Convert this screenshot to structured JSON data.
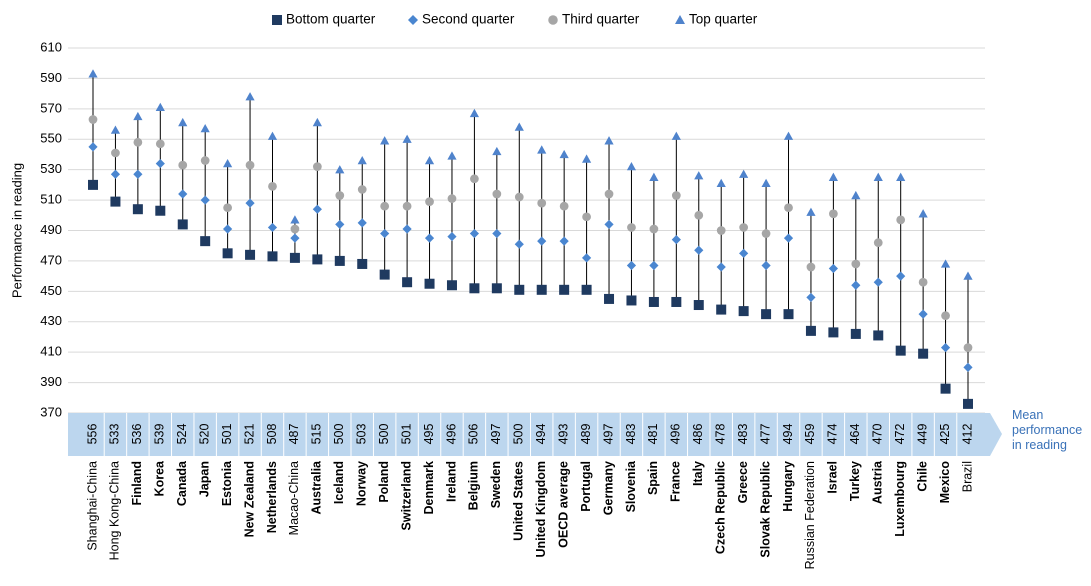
{
  "chart_data": {
    "type": "range-dot",
    "y_label": "Performance in reading",
    "mean_label": "Mean performance in reading",
    "categories": [
      "Shanghai-China",
      "Hong Kong-China",
      "Finland",
      "Korea",
      "Canada",
      "Japan",
      "Estonia",
      "New Zealand",
      "Netherlands",
      "Macao-China",
      "Australia",
      "Iceland",
      "Norway",
      "Poland",
      "Switzerland",
      "Denmark",
      "Ireland",
      "Belgium",
      "Sweden",
      "United States",
      "United Kingdom",
      "OECD average",
      "Portugal",
      "Germany",
      "Slovenia",
      "Spain",
      "France",
      "Italy",
      "Czech Republic",
      "Greece",
      "Slovak Republic",
      "Hungary",
      "Russian Federation",
      "Israel",
      "Turkey",
      "Austria",
      "Luxembourg",
      "Chile",
      "Mexico",
      "Brazil"
    ],
    "mean_values": [
      556,
      533,
      536,
      539,
      524,
      520,
      501,
      521,
      508,
      487,
      515,
      500,
      503,
      500,
      501,
      495,
      496,
      506,
      497,
      500,
      494,
      493,
      489,
      497,
      483,
      481,
      496,
      486,
      478,
      483,
      477,
      494,
      459,
      474,
      464,
      470,
      472,
      449,
      425,
      412
    ],
    "gray_categories": [
      0,
      1,
      9,
      32,
      39
    ],
    "gray_color": "#8c8c8c",
    "series": [
      {
        "name": "Bottom quarter",
        "color": "#1f3a60",
        "marker": "square",
        "values": [
          520,
          509,
          504,
          503,
          494,
          483,
          475,
          474,
          473,
          472,
          471,
          470,
          468,
          461,
          456,
          455,
          454,
          452,
          452,
          451,
          451,
          451,
          451,
          445,
          444,
          443,
          443,
          441,
          438,
          437,
          435,
          435,
          424,
          423,
          422,
          421,
          411,
          409,
          386,
          376
        ]
      },
      {
        "name": "Second quarter",
        "color": "#4a86d0",
        "marker": "diamond",
        "values": [
          545,
          527,
          527,
          534,
          514,
          510,
          491,
          508,
          492,
          485,
          504,
          494,
          495,
          488,
          491,
          485,
          486,
          488,
          488,
          481,
          483,
          483,
          472,
          494,
          467,
          467,
          484,
          477,
          466,
          475,
          467,
          485,
          446,
          465,
          454,
          456,
          460,
          435,
          413,
          400
        ]
      },
      {
        "name": "Third quarter",
        "color": "#a6a6a6",
        "marker": "circle",
        "values": [
          563,
          541,
          548,
          547,
          533,
          536,
          505,
          533,
          519,
          491,
          532,
          513,
          517,
          506,
          506,
          509,
          511,
          524,
          514,
          512,
          508,
          506,
          499,
          514,
          492,
          491,
          513,
          500,
          490,
          492,
          488,
          505,
          466,
          501,
          468,
          482,
          497,
          456,
          434,
          413
        ]
      },
      {
        "name": "Top quarter",
        "color": "#4f83cc",
        "marker": "triangle",
        "values": [
          593,
          556,
          565,
          571,
          561,
          557,
          534,
          578,
          552,
          497,
          561,
          530,
          536,
          549,
          550,
          536,
          539,
          567,
          542,
          558,
          543,
          540,
          537,
          549,
          532,
          525,
          552,
          526,
          521,
          527,
          521,
          552,
          502,
          525,
          513,
          525,
          525,
          501,
          468,
          460
        ]
      }
    ],
    "ylim": [
      370,
      610
    ],
    "yticks": [
      370,
      390,
      410,
      430,
      450,
      470,
      490,
      510,
      530,
      550,
      570,
      590,
      610
    ],
    "grid": true
  }
}
